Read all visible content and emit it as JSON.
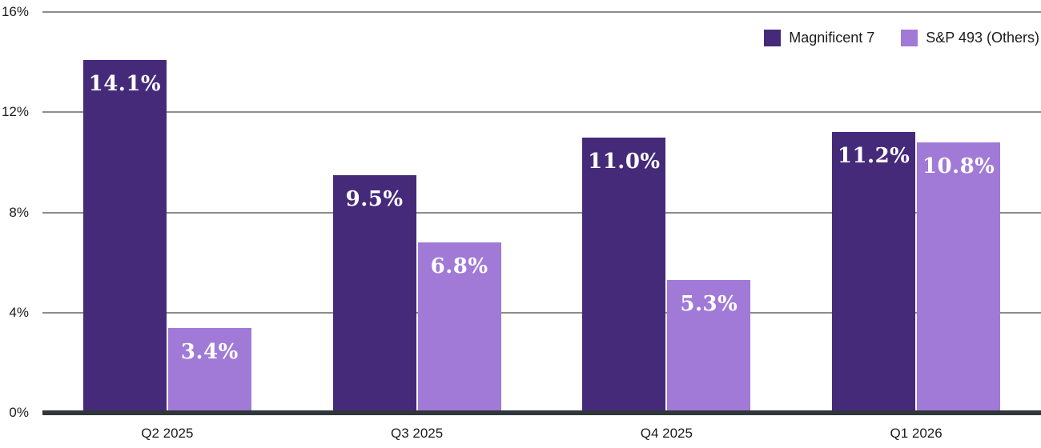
{
  "colors": {
    "mag7": "#452a7a",
    "sp493": "#a07ad6",
    "gridline": "#8c8c8c",
    "axis_line": "#30373b",
    "text": "#1c1c1c",
    "value_label_text": "#ffffff",
    "background": "#ffffff"
  },
  "legend": {
    "items": [
      {
        "label": "Magnificent 7"
      },
      {
        "label": "S&P 493 (Others)"
      }
    ]
  },
  "chart_data": {
    "type": "bar",
    "categories": [
      "Q2 2025",
      "Q3 2025",
      "Q4 2025",
      "Q1 2026"
    ],
    "series": [
      {
        "name": "Magnificent 7",
        "color": "#452a7a",
        "values": [
          14.1,
          9.5,
          11.0,
          11.2
        ],
        "data_labels": [
          "14.1%",
          "9.5%",
          "11.0%",
          "11.2%"
        ]
      },
      {
        "name": "S&P 493 (Others)",
        "color": "#a07ad6",
        "values": [
          3.4,
          6.8,
          5.3,
          10.8
        ],
        "data_labels": [
          "3.4%",
          "6.8%",
          "5.3%",
          "10.8%"
        ]
      }
    ],
    "ylim": [
      0,
      16
    ],
    "yticks": [
      {
        "value": 16,
        "label": "16%"
      },
      {
        "value": 12,
        "label": "12%"
      },
      {
        "value": 8,
        "label": "8%"
      },
      {
        "value": 4,
        "label": "4%"
      },
      {
        "value": 0,
        "label": "0%"
      }
    ],
    "grid": true,
    "legend_position": "top-right"
  }
}
